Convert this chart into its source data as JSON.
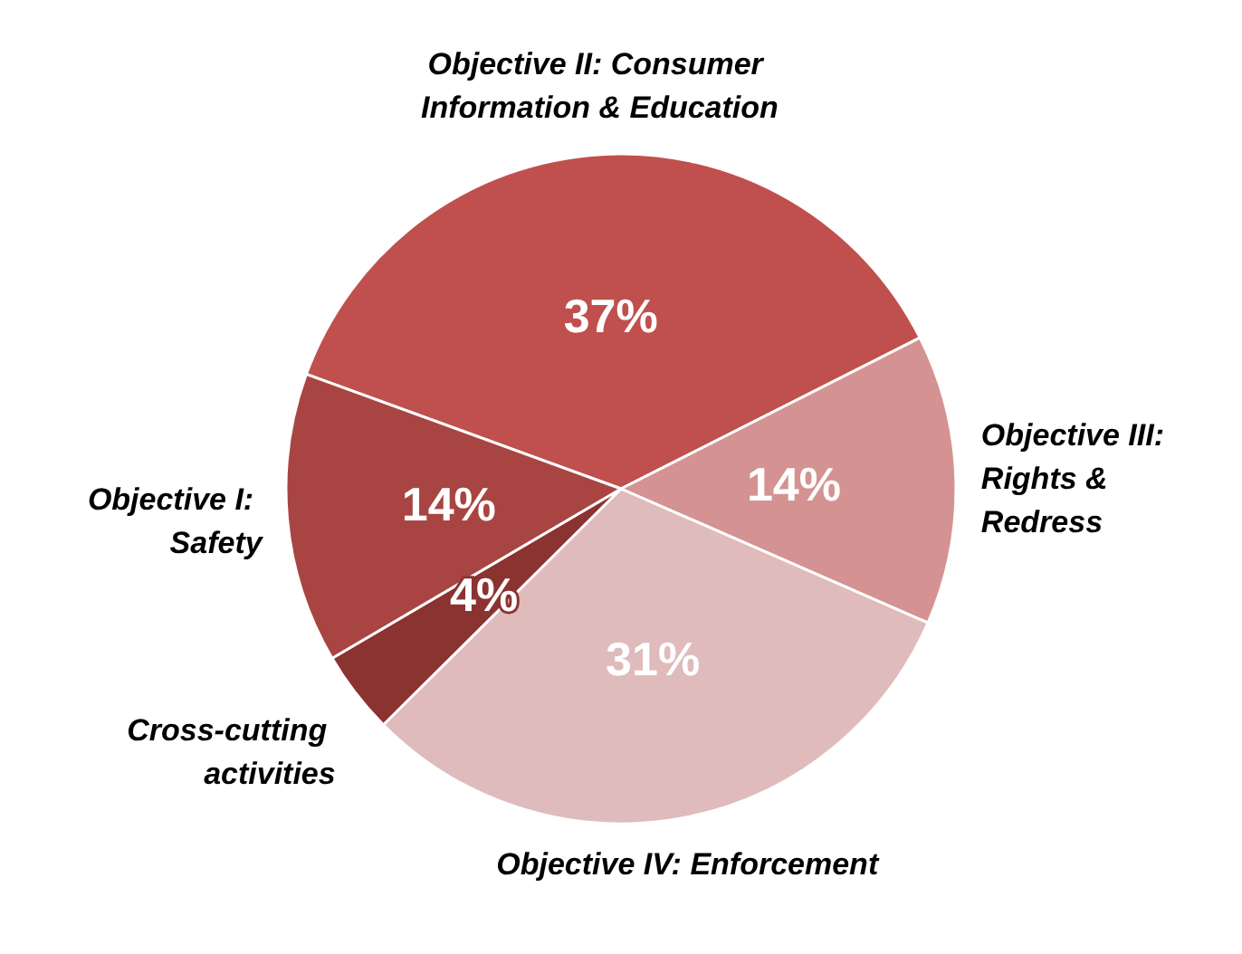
{
  "chart_data": {
    "type": "pie",
    "categories": [
      "Objective II: Consumer Information & Education",
      "Objective III: Rights & Redress",
      "Objective IV: Enforcement",
      "Cross-cutting activities",
      "Objective I: Safety"
    ],
    "values": [
      37,
      14,
      31,
      4,
      14
    ],
    "colors": [
      "#c0504d",
      "#d49392",
      "#e0bbbb",
      "#8b3331",
      "#a84542"
    ],
    "value_labels": [
      "37%",
      "14%",
      "31%",
      "4%",
      "14%"
    ],
    "legend": false
  }
}
